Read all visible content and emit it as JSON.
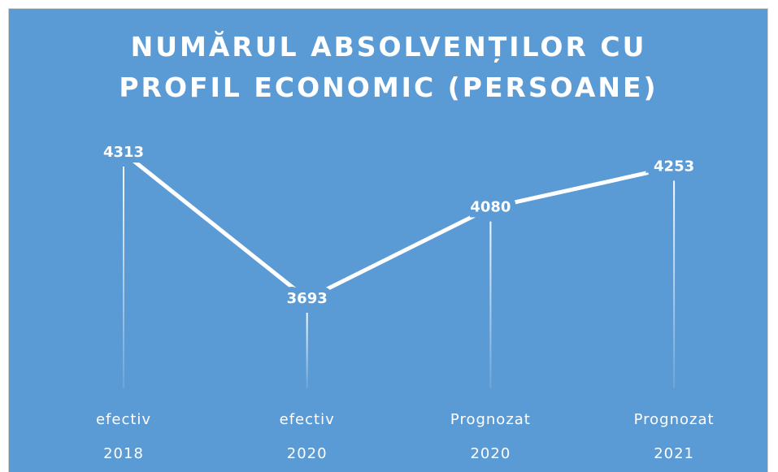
{
  "chart_data": {
    "type": "line",
    "title": "NUMĂRUL ABSOLVENȚILOR CU PROFIL ECONOMIC (PERSOANE)",
    "categories": [
      [
        "efectiv",
        "2018"
      ],
      [
        "efectiv",
        "2020"
      ],
      [
        "Prognozat",
        "2020"
      ],
      [
        "Prognozat",
        "2021"
      ]
    ],
    "values": [
      4313,
      3693,
      4080,
      4253
    ],
    "color": "#ffffff",
    "background": "#5b9bd5",
    "drop_lines": true
  }
}
